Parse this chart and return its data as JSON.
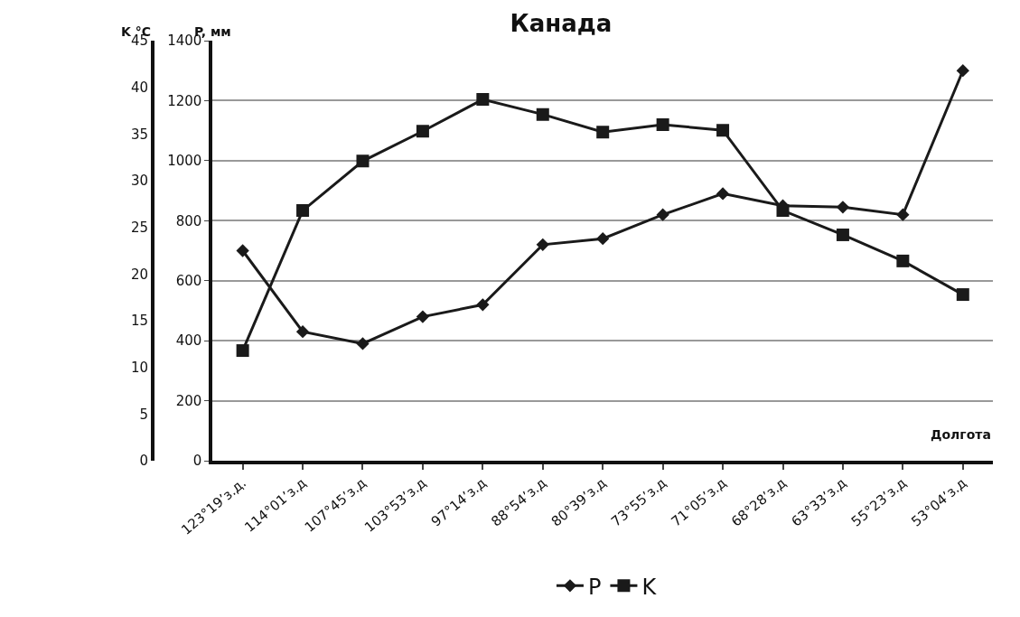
{
  "chart_data": {
    "type": "line",
    "title": "Канада",
    "xlabel": "Долгота",
    "ylabel": "P, мм",
    "y2label": "K °C",
    "categories": [
      "123°19’з.д.",
      "114°01’з.д",
      "107°45’з.д",
      "103°53’з.д",
      "97°14’з.д",
      "88°54’з.д",
      "80°39’з.д",
      "73°55’з.д",
      "71°05’з.д",
      "68°28’з.д",
      "63°33’з.д",
      "55°23’з.д",
      "53°04’з.д"
    ],
    "series": [
      {
        "name": "P",
        "color": "#1a1a1a",
        "marker": "diamond",
        "values": [
          700,
          430,
          390,
          480,
          520,
          720,
          740,
          820,
          890,
          850,
          845,
          820,
          1300
        ]
      },
      {
        "name": "K",
        "color": "#1a1a1a",
        "marker": "square",
        "axis": "y2",
        "values": [
          11.8,
          26.8,
          32.1,
          35.3,
          38.7,
          37.1,
          35.2,
          36.0,
          35.4,
          26.8,
          24.2,
          21.4,
          17.8
        ]
      }
    ],
    "ylim": [
      0,
      1400
    ],
    "yticks": [
      0,
      200,
      400,
      600,
      800,
      1000,
      1200,
      1400
    ],
    "y2lim": [
      0,
      45
    ],
    "y2ticks": [
      0,
      5,
      10,
      15,
      20,
      25,
      30,
      35,
      40,
      45
    ],
    "grid": "y",
    "legend": "bottom",
    "line_style": "solid"
  }
}
